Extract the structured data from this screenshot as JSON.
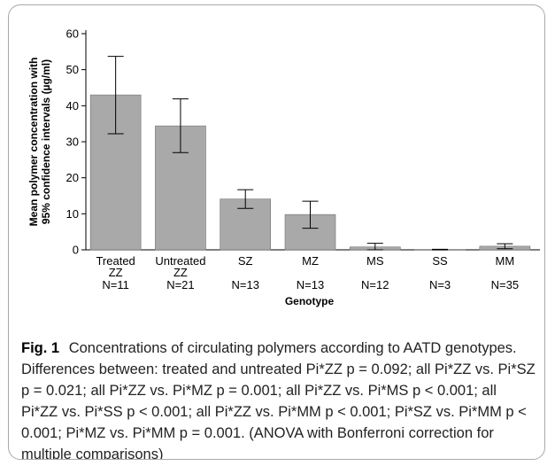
{
  "figure": {
    "label": "Fig. 1",
    "caption": "Concentrations of circulating polymers according to AATD genotypes. Differences between: treated and untreated Pi*ZZ p = 0.092; all Pi*ZZ vs. Pi*SZ p = 0.021; all Pi*ZZ vs. Pi*MZ p = 0.001; all Pi*ZZ vs. Pi*MS p < 0.001; all Pi*ZZ vs. Pi*SS p < 0.001; all Pi*ZZ vs. Pi*MM p < 0.001; Pi*SZ vs. Pi*MM p < 0.001; Pi*MZ vs. Pi*MM p = 0.001. (ANOVA with Bonferroni correction for multiple comparisons)"
  },
  "chart_data": {
    "type": "bar",
    "xlabel": "Genotype",
    "ylabel_line1": "Mean polymer concentration with",
    "ylabel_line2": "95% confidence intervals (µg/ml)",
    "ylim": [
      0,
      60
    ],
    "yticks": [
      "0",
      "10",
      "20",
      "30",
      "40",
      "50",
      "60"
    ],
    "grid": false,
    "bar_color": "#a9a9a9",
    "categories": [
      {
        "label1": "Treated",
        "label2": "ZZ",
        "n": "N=11"
      },
      {
        "label1": "Untreated",
        "label2": "ZZ",
        "n": "N=21"
      },
      {
        "label1": "SZ",
        "label2": "",
        "n": "N=13"
      },
      {
        "label1": "MZ",
        "label2": "",
        "n": "N=13"
      },
      {
        "label1": "MS",
        "label2": "",
        "n": "N=12"
      },
      {
        "label1": "SS",
        "label2": "",
        "n": "N=3"
      },
      {
        "label1": "MM",
        "label2": "",
        "n": "N=35"
      }
    ],
    "values": [
      43.0,
      34.4,
      14.1,
      9.8,
      0.8,
      0.1,
      1.0
    ],
    "ci_low": [
      32.2,
      27.0,
      11.5,
      6.0,
      0.0,
      0.0,
      0.3
    ],
    "ci_high": [
      53.7,
      41.9,
      16.7,
      13.5,
      1.8,
      0.15,
      1.7
    ]
  }
}
